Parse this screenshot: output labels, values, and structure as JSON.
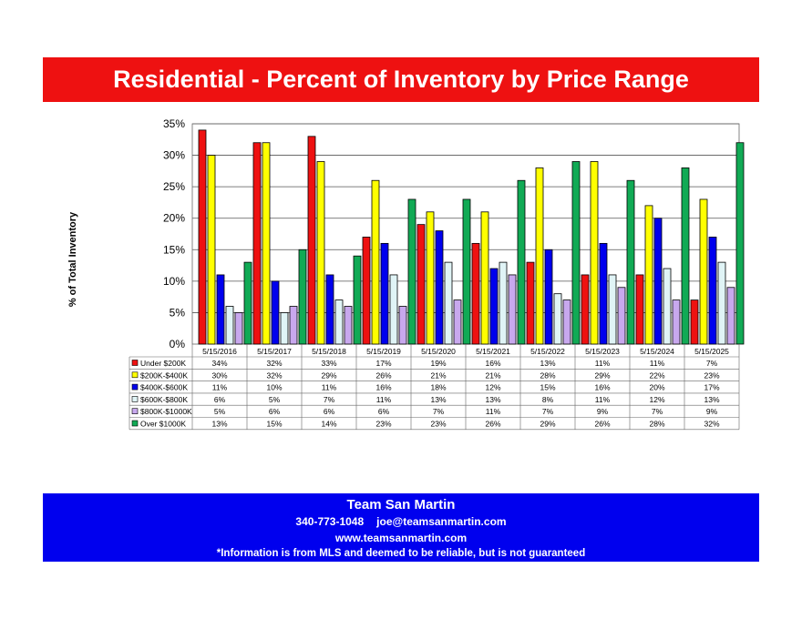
{
  "title": "Residential - Percent of Inventory by Price Range",
  "colors": {
    "title_bg": "#ee1111",
    "footer_bg": "#0000ee",
    "series": [
      "#ee1111",
      "#ffff00",
      "#0000ee",
      "#e0f4f6",
      "#c8a8ee",
      "#11aa55"
    ]
  },
  "footer": {
    "name": "Team San Martin",
    "phone": "340-773-1048",
    "email": "joe@teamsanmartin.com",
    "website": "www.teamsanmartin.com",
    "disclaimer": "*Information is from MLS and deemed to be reliable, but is not guaranteed"
  },
  "chart_data": {
    "type": "bar",
    "ylabel": "% of Total Inventory",
    "ylim": [
      0,
      35
    ],
    "yticks": [
      "0%",
      "5%",
      "10%",
      "15%",
      "20%",
      "25%",
      "30%",
      "35%"
    ],
    "grid": true,
    "legend": "data table below chart",
    "categories": [
      "5/15/2016",
      "5/15/2017",
      "5/15/2018",
      "5/15/2019",
      "5/15/2020",
      "5/15/2021",
      "5/15/2022",
      "5/15/2023",
      "5/15/2024",
      "5/15/2025"
    ],
    "series": [
      {
        "name": "Under $200K",
        "values": [
          34,
          32,
          33,
          17,
          19,
          16,
          13,
          11,
          11,
          7
        ]
      },
      {
        "name": "$200K-$400K",
        "values": [
          30,
          32,
          29,
          26,
          21,
          21,
          28,
          29,
          22,
          23
        ]
      },
      {
        "name": "$400K-$600K",
        "values": [
          11,
          10,
          11,
          16,
          18,
          12,
          15,
          16,
          20,
          17
        ]
      },
      {
        "name": "$600K-$800K",
        "values": [
          6,
          5,
          7,
          11,
          13,
          13,
          8,
          11,
          12,
          13
        ]
      },
      {
        "name": "$800K-$1000K",
        "values": [
          5,
          6,
          6,
          6,
          7,
          11,
          7,
          9,
          7,
          9
        ]
      },
      {
        "name": "Over $1000K",
        "values": [
          13,
          15,
          14,
          23,
          23,
          26,
          29,
          26,
          28,
          32
        ]
      }
    ]
  }
}
